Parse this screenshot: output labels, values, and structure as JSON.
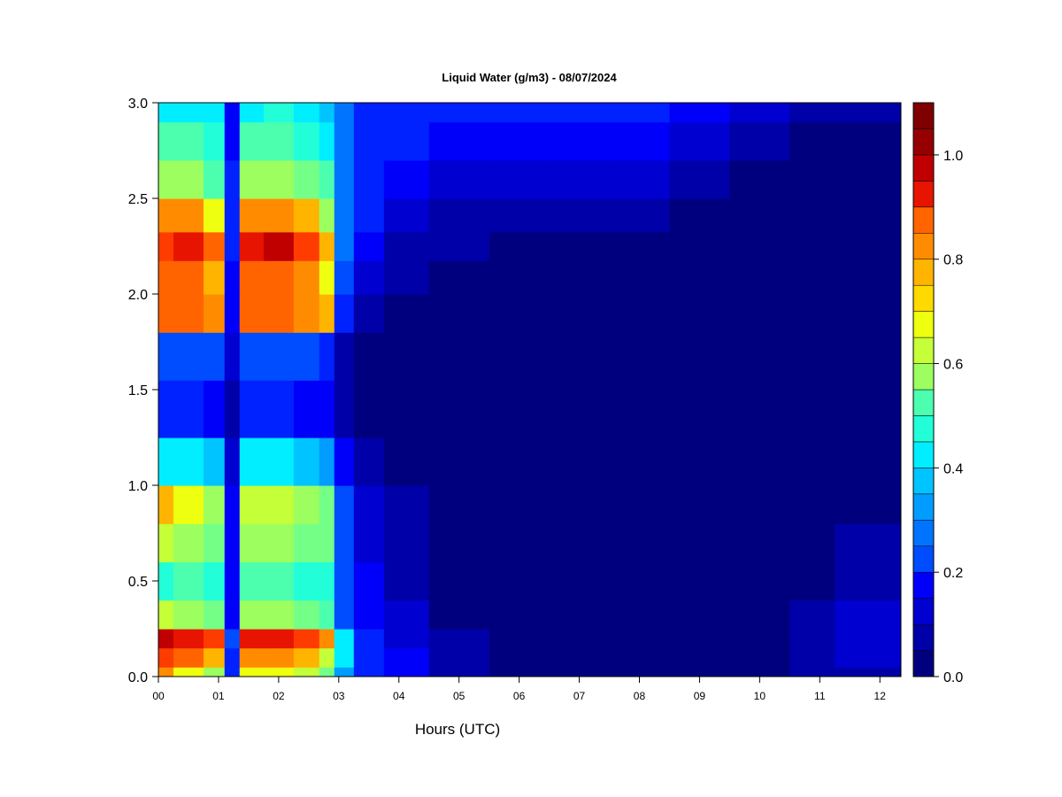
{
  "chart_data": {
    "type": "heatmap",
    "title": "Liquid Water (g/m3) - 08/07/2024",
    "xlabel": "Hours (UTC)",
    "ylabel": "",
    "x_ticks": [
      "00",
      "01",
      "02",
      "03",
      "04",
      "05",
      "06",
      "07",
      "08",
      "09",
      "10",
      "11",
      "12"
    ],
    "y_ticks": [
      "0.0",
      "0.5",
      "1.0",
      "1.5",
      "2.0",
      "2.5",
      "3.0"
    ],
    "xlim": [
      0,
      12.35
    ],
    "ylim": [
      0,
      3.0
    ],
    "grid": false,
    "colorbar": {
      "ticks": [
        "0.0",
        "0.2",
        "0.4",
        "0.6",
        "0.8",
        "1.0"
      ],
      "range": [
        0,
        1.1
      ],
      "levels": 22,
      "colors": [
        "#00007F",
        "#0000A8",
        "#0000D0",
        "#0000FA",
        "#0022FF",
        "#004CFF",
        "#0074FF",
        "#009CFF",
        "#00C4FF",
        "#00EEFF",
        "#22FFD8",
        "#4CFFAF",
        "#74FF87",
        "#9CFF5F",
        "#C4FF37",
        "#EEFF0F",
        "#FFDA00",
        "#FFB400",
        "#FF8C00",
        "#FF6400",
        "#FF3C00",
        "#E61400",
        "#C00000",
        "#970000",
        "#7F0000"
      ]
    },
    "series": [
      {
        "x_hours": [
          0.0,
          0.5,
          1.0,
          1.2,
          1.5,
          2.0,
          2.5,
          2.85,
          3.0,
          3.5,
          4.0,
          5.0,
          6.0,
          7.0,
          8.0,
          9.0,
          10.0,
          11.0,
          11.5,
          12.0,
          12.35
        ],
        "heights_km": [
          0.0,
          0.1,
          0.2,
          0.3,
          0.5,
          0.7,
          0.9,
          1.1,
          1.4,
          1.7,
          1.9,
          2.1,
          2.25,
          2.4,
          2.6,
          2.8,
          3.0
        ],
        "liquid_water_g_m3": [
          [
            0.8,
            0.7,
            0.6,
            0.2,
            0.7,
            0.7,
            0.65,
            0.55,
            0.35,
            0.2,
            0.15,
            0.05,
            0.03,
            0.03,
            0.03,
            0.03,
            0.03,
            0.05,
            0.08,
            0.08,
            0.08
          ],
          [
            0.9,
            0.85,
            0.75,
            0.2,
            0.8,
            0.8,
            0.75,
            0.65,
            0.4,
            0.2,
            0.15,
            0.05,
            0.03,
            0.03,
            0.03,
            0.03,
            0.03,
            0.05,
            0.1,
            0.1,
            0.1
          ],
          [
            1.0,
            0.95,
            0.9,
            0.25,
            0.95,
            0.95,
            0.9,
            0.8,
            0.4,
            0.2,
            0.12,
            0.05,
            0.03,
            0.03,
            0.03,
            0.03,
            0.03,
            0.05,
            0.1,
            0.1,
            0.1
          ],
          [
            0.65,
            0.6,
            0.55,
            0.15,
            0.6,
            0.6,
            0.55,
            0.5,
            0.25,
            0.15,
            0.1,
            0.04,
            0.03,
            0.03,
            0.03,
            0.03,
            0.03,
            0.05,
            0.09,
            0.09,
            0.09
          ],
          [
            0.45,
            0.5,
            0.45,
            0.15,
            0.5,
            0.5,
            0.45,
            0.45,
            0.25,
            0.15,
            0.08,
            0.03,
            0.02,
            0.02,
            0.02,
            0.02,
            0.02,
            0.04,
            0.07,
            0.08,
            0.08
          ],
          [
            0.65,
            0.6,
            0.55,
            0.15,
            0.6,
            0.6,
            0.55,
            0.55,
            0.25,
            0.12,
            0.06,
            0.02,
            0.02,
            0.02,
            0.02,
            0.02,
            0.02,
            0.03,
            0.05,
            0.06,
            0.06
          ],
          [
            0.75,
            0.7,
            0.6,
            0.15,
            0.65,
            0.65,
            0.6,
            0.55,
            0.25,
            0.1,
            0.05,
            0.02,
            0.02,
            0.02,
            0.02,
            0.02,
            0.02,
            0.02,
            0.03,
            0.04,
            0.04
          ],
          [
            0.42,
            0.42,
            0.38,
            0.12,
            0.42,
            0.42,
            0.38,
            0.35,
            0.15,
            0.08,
            0.04,
            0.02,
            0.02,
            0.02,
            0.02,
            0.02,
            0.02,
            0.02,
            0.02,
            0.02,
            0.02
          ],
          [
            0.18,
            0.18,
            0.16,
            0.08,
            0.18,
            0.18,
            0.16,
            0.15,
            0.08,
            0.04,
            0.02,
            0.01,
            0.01,
            0.01,
            0.01,
            0.01,
            0.01,
            0.01,
            0.01,
            0.01,
            0.01
          ],
          [
            0.25,
            0.25,
            0.22,
            0.1,
            0.25,
            0.25,
            0.22,
            0.2,
            0.08,
            0.04,
            0.02,
            0.01,
            0.01,
            0.01,
            0.01,
            0.01,
            0.01,
            0.01,
            0.01,
            0.01,
            0.01
          ],
          [
            0.85,
            0.85,
            0.8,
            0.15,
            0.85,
            0.85,
            0.8,
            0.75,
            0.2,
            0.08,
            0.04,
            0.02,
            0.01,
            0.01,
            0.01,
            0.01,
            0.01,
            0.01,
            0.01,
            0.01,
            0.01
          ],
          [
            0.85,
            0.85,
            0.75,
            0.15,
            0.85,
            0.85,
            0.8,
            0.7,
            0.25,
            0.12,
            0.06,
            0.03,
            0.02,
            0.02,
            0.02,
            0.02,
            0.02,
            0.01,
            0.01,
            0.01,
            0.01
          ],
          [
            0.92,
            0.95,
            0.85,
            0.18,
            0.95,
            0.97,
            0.9,
            0.75,
            0.3,
            0.15,
            0.08,
            0.05,
            0.04,
            0.04,
            0.03,
            0.02,
            0.02,
            0.01,
            0.01,
            0.01,
            0.01
          ],
          [
            0.8,
            0.8,
            0.7,
            0.18,
            0.8,
            0.8,
            0.75,
            0.6,
            0.3,
            0.18,
            0.1,
            0.07,
            0.06,
            0.06,
            0.05,
            0.03,
            0.02,
            0.01,
            0.01,
            0.01,
            0.01
          ],
          [
            0.6,
            0.6,
            0.5,
            0.18,
            0.6,
            0.6,
            0.55,
            0.5,
            0.3,
            0.2,
            0.15,
            0.12,
            0.12,
            0.12,
            0.1,
            0.05,
            0.02,
            0.01,
            0.01,
            0.01,
            0.01
          ],
          [
            0.5,
            0.5,
            0.45,
            0.15,
            0.5,
            0.5,
            0.45,
            0.4,
            0.28,
            0.2,
            0.18,
            0.15,
            0.15,
            0.15,
            0.15,
            0.1,
            0.05,
            0.02,
            0.02,
            0.02,
            0.02
          ],
          [
            0.42,
            0.42,
            0.4,
            0.15,
            0.42,
            0.45,
            0.42,
            0.38,
            0.28,
            0.2,
            0.2,
            0.18,
            0.18,
            0.18,
            0.18,
            0.15,
            0.1,
            0.06,
            0.06,
            0.08,
            0.08
          ]
        ]
      }
    ]
  }
}
